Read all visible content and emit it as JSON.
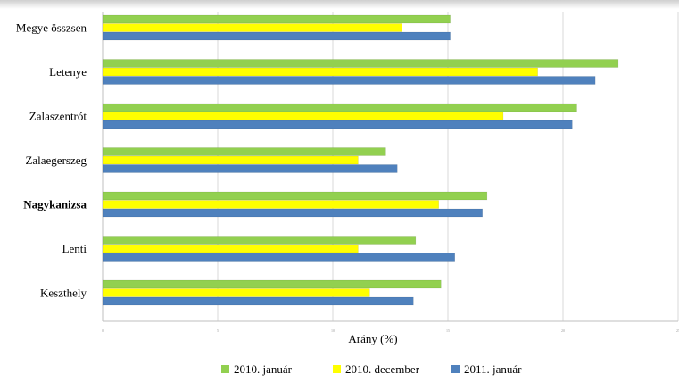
{
  "chart_data": {
    "type": "bar",
    "orientation": "horizontal",
    "categories": [
      "Megye összsen",
      "Letenye",
      "Zalaszentrót",
      "Zalaegerszeg",
      "Nagykanizsa",
      "Lenti",
      "Keszthely"
    ],
    "bold_categories": [
      "Nagykanizsa"
    ],
    "series": [
      {
        "name": "2010. január",
        "color": "#92d050",
        "values": [
          15.1,
          22.4,
          20.6,
          12.3,
          16.7,
          13.6,
          14.7
        ]
      },
      {
        "name": "2010. december",
        "color": "#ffff00",
        "values": [
          13.0,
          18.9,
          17.4,
          11.1,
          14.6,
          11.1,
          11.6
        ]
      },
      {
        "name": "2011. január",
        "color": "#4f81bd",
        "values": [
          15.1,
          21.4,
          20.4,
          12.8,
          16.5,
          15.3,
          13.5
        ]
      }
    ],
    "xlabel": "Arány (%)",
    "ylabel": "",
    "xlim": [
      0,
      25
    ],
    "xticks": [
      0,
      5,
      10,
      15,
      20,
      25
    ],
    "grid": true,
    "legend": "bottom"
  }
}
